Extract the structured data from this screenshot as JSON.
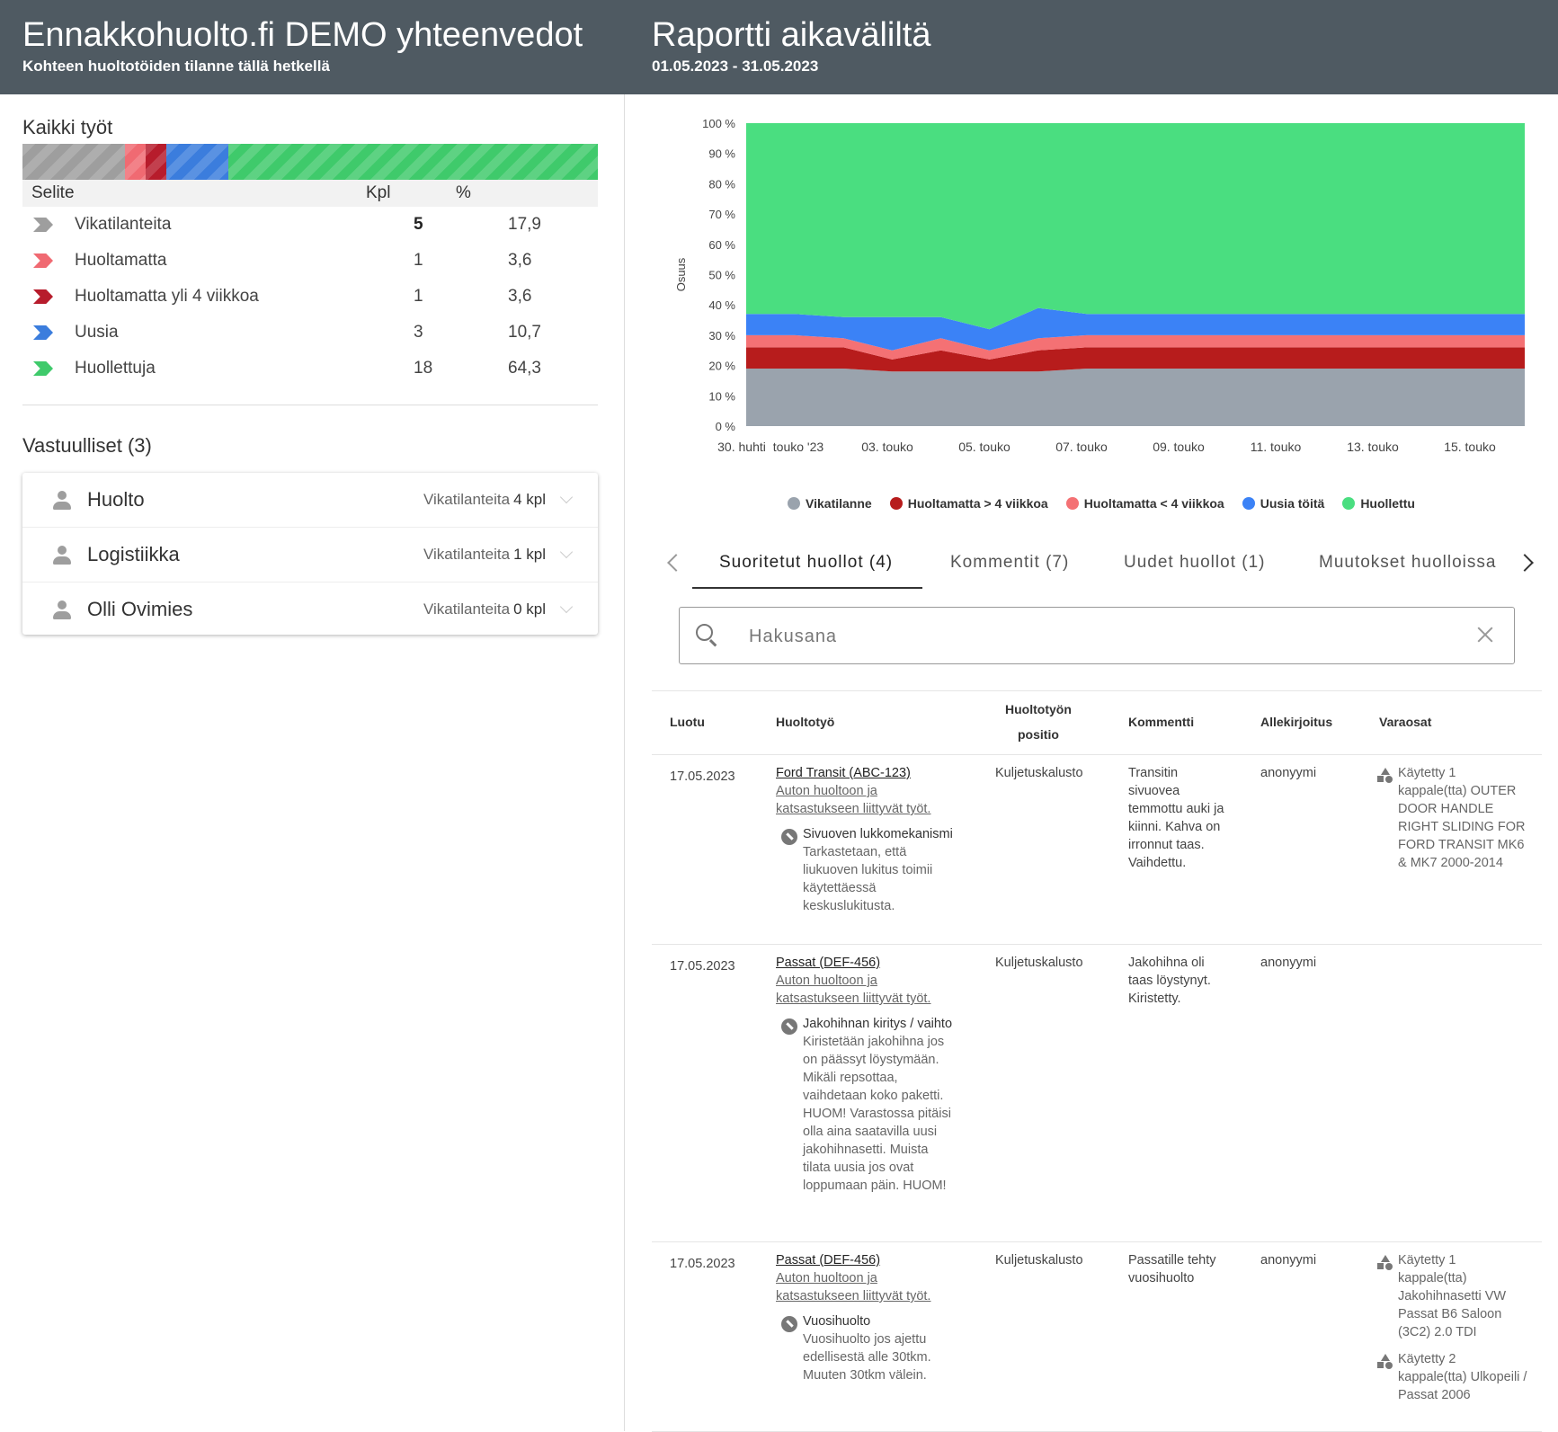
{
  "header": {
    "title": "Ennakkohuolto.fi DEMO yhteenvedot",
    "subtitle": "Kohteen huoltotöiden tilanne tällä hetkellä",
    "report_title": "Raportti aikaväliltä",
    "report_range": "01.05.2023 - 31.05.2023"
  },
  "summary": {
    "title": "Kaikki työt",
    "columns": [
      "Selite",
      "Kpl",
      "%"
    ],
    "rows": [
      {
        "label": "Vikatilanteita",
        "count": "5",
        "percent": "17,9",
        "color": "#9e9e9e",
        "bold": true
      },
      {
        "label": "Huoltamatta",
        "count": "1",
        "percent": "3,6",
        "color": "#f06a72"
      },
      {
        "label": "Huoltamatta yli 4 viikkoa",
        "count": "1",
        "percent": "3,6",
        "color": "#b71c2c"
      },
      {
        "label": "Uusia",
        "count": "3",
        "percent": "10,7",
        "color": "#3b7ddd"
      },
      {
        "label": "Huollettuja",
        "count": "18",
        "percent": "64,3",
        "color": "#3fca6b"
      }
    ]
  },
  "responsibles": {
    "title": "Vastuulliset (3)",
    "items": [
      {
        "name": "Huolto",
        "label": "Vikatilanteita",
        "value": "4 kpl"
      },
      {
        "name": "Logistiikka",
        "label": "Vikatilanteita",
        "value": "1 kpl"
      },
      {
        "name": "Olli Ovimies",
        "label": "Vikatilanteita",
        "value": "0 kpl"
      }
    ]
  },
  "chart_data": {
    "type": "area",
    "stacked": true,
    "ylabel": "Osuus",
    "ylim": [
      0,
      100
    ],
    "yticks": [
      "0 %",
      "10 %",
      "20 %",
      "30 %",
      "40 %",
      "50 %",
      "60 %",
      "70 %",
      "80 %",
      "90 %",
      "100 %"
    ],
    "xticks": [
      "30. huhti",
      "touko '23",
      "03. touko",
      "05. touko",
      "07. touko",
      "09. touko",
      "11. touko",
      "13. touko",
      "15. touko"
    ],
    "x": [
      0,
      1,
      2,
      3,
      4,
      5,
      6,
      7,
      8,
      9,
      10,
      11,
      12,
      13,
      14,
      15,
      16
    ],
    "series": [
      {
        "name": "Vikatilanne",
        "color": "#9aa3ad",
        "values": [
          19,
          19,
          19,
          18,
          18,
          18,
          18,
          19,
          19,
          19,
          19,
          19,
          19,
          19,
          19,
          19,
          19
        ]
      },
      {
        "name": "Huoltamatta > 4 viikkoa",
        "color": "#b71c1c",
        "values": [
          7,
          7,
          7,
          4,
          7,
          4,
          7,
          7,
          7,
          7,
          7,
          7,
          7,
          7,
          7,
          7,
          7
        ]
      },
      {
        "name": "Huoltamatta < 4 viikkoa",
        "color": "#f47174",
        "values": [
          4,
          4,
          3,
          3,
          4,
          3,
          4,
          4,
          4,
          4,
          4,
          4,
          4,
          4,
          4,
          4,
          4
        ]
      },
      {
        "name": "Uusia töitä",
        "color": "#3b82f6",
        "values": [
          7,
          7,
          7,
          11,
          7,
          7,
          10,
          7,
          7,
          7,
          7,
          7,
          7,
          7,
          7,
          7,
          7
        ]
      },
      {
        "name": "Huollettu",
        "color": "#4ade80",
        "values": [
          63,
          63,
          64,
          64,
          64,
          68,
          61,
          63,
          63,
          63,
          63,
          63,
          63,
          63,
          63,
          63,
          63
        ]
      }
    ]
  },
  "tabs": [
    "Suoritetut huollot (4)",
    "Kommentit (7)",
    "Uudet huollot (1)",
    "Muutokset huolloissa"
  ],
  "search": {
    "placeholder": "Hakusana"
  },
  "table": {
    "headers": {
      "created": "Luotu",
      "work": "Huoltotyö",
      "position_1": "Huoltotyön",
      "position_2": "positio",
      "comment": "Kommentti",
      "signature": "Allekirjoitus",
      "parts": "Varaosat"
    },
    "rows": [
      {
        "date": "17.05.2023",
        "vehicle": "Ford Transit (ABC-123)",
        "category": "Auton huoltoon ja katsastukseen liittyvät työt.",
        "task_name": "Sivuoven lukkomekanismi",
        "task_desc": "Tarkastetaan, että liukuoven lukitus toimii käytettäessä keskuslukitusta.",
        "position": "Kuljetuskalusto",
        "comment": "Transitin sivuovea temmottu auki ja kiinni. Kahva on irronnut taas. Vaihdettu.",
        "signature": "anonyymi",
        "parts": [
          "Käytetty 1 kappale(tta) OUTER DOOR HANDLE RIGHT SLIDING FOR FORD TRANSIT MK6 & MK7 2000-2014"
        ]
      },
      {
        "date": "17.05.2023",
        "vehicle": "Passat (DEF-456)",
        "category": "Auton huoltoon ja katsastukseen liittyvät työt.",
        "task_name": "Jakohihnan kiritys / vaihto",
        "task_desc": "Kiristetään jakohihna jos on päässyt löystymään. Mikäli repsottaa, vaihdetaan koko paketti. HUOM! Varastossa pitäisi olla aina saatavilla uusi jakohihnasetti. Muista tilata uusia jos ovat loppumaan päin. HUOM!",
        "position": "Kuljetuskalusto",
        "comment": "Jakohihna oli taas löystynyt. Kiristetty.",
        "signature": "anonyymi",
        "parts": []
      },
      {
        "date": "17.05.2023",
        "vehicle": "Passat (DEF-456)",
        "category": "Auton huoltoon ja katsastukseen liittyvät työt.",
        "task_name": "Vuosihuolto",
        "task_desc": "Vuosihuolto jos ajettu edellisestä alle 30tkm. Muuten 30tkm välein.",
        "position": "Kuljetuskalusto",
        "comment": "Passatille tehty vuosihuolto",
        "signature": "anonyymi",
        "parts": [
          "Käytetty 1 kappale(tta) Jakohihnasetti VW Passat B6 Saloon (3C2) 2.0 TDI",
          "Käytetty 2 kappale(tta) Ulkopeili / Passat 2006"
        ]
      }
    ]
  }
}
